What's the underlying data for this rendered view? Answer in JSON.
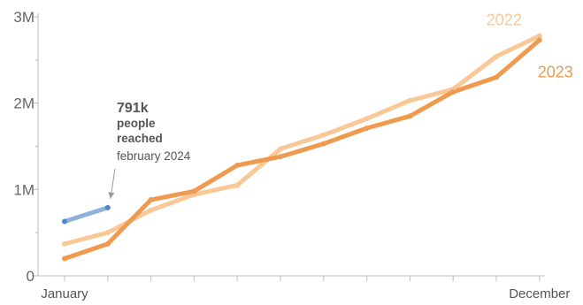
{
  "chart_data": {
    "type": "line",
    "title": "",
    "xlabel": "",
    "ylabel": "",
    "ylim": [
      0,
      3000000
    ],
    "y_ticks": [
      {
        "value": 0,
        "label": "0"
      },
      {
        "value": 1000000,
        "label": "1M"
      },
      {
        "value": 2000000,
        "label": "2M"
      },
      {
        "value": 3000000,
        "label": "3M"
      }
    ],
    "y_minor_ticks": [
      500000,
      1500000,
      2500000
    ],
    "x_count": 12,
    "x_labels": [
      {
        "index": 0,
        "label": "January"
      },
      {
        "index": 11,
        "label": "December"
      }
    ],
    "grid": false,
    "series": [
      {
        "name": "2022",
        "color": "#f9c896",
        "values": [
          370000,
          500000,
          760000,
          940000,
          1050000,
          1470000,
          1630000,
          1820000,
          2030000,
          2160000,
          2540000,
          2780000
        ]
      },
      {
        "name": "2023",
        "color": "#ef9a4f",
        "values": [
          200000,
          370000,
          880000,
          980000,
          1280000,
          1380000,
          1530000,
          1710000,
          1850000,
          2130000,
          2300000,
          2730000
        ]
      },
      {
        "name": "",
        "color": "#8fb1dc",
        "point_color": "#4f86c6",
        "values": [
          630000,
          790000
        ]
      }
    ],
    "annotation": {
      "value_text": "791k",
      "line1": "people",
      "line2": "reached",
      "date_text": "february 2024",
      "x_index": 1,
      "y_value": 791000
    }
  }
}
